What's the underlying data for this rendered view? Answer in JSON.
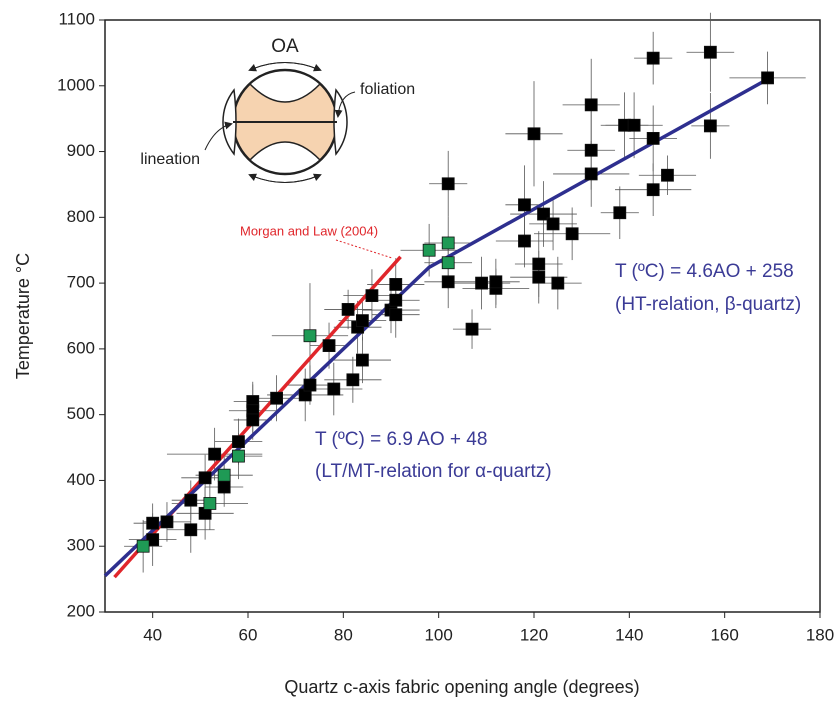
{
  "chart_data": {
    "type": "scatter",
    "xlabel": "Quartz c-axis fabric opening angle (degrees)",
    "ylabel": "Temperature °C",
    "xlim": [
      30,
      180
    ],
    "ylim": [
      200,
      1100
    ],
    "xticks": [
      40,
      60,
      80,
      100,
      120,
      140,
      160,
      180
    ],
    "yticks": [
      200,
      300,
      400,
      500,
      600,
      700,
      800,
      900,
      1000,
      1100
    ],
    "series": [
      {
        "color": "#000000",
        "x": [
          40,
          40,
          43,
          48,
          48,
          51,
          51,
          53,
          55,
          58,
          61,
          61,
          61,
          66,
          72,
          73,
          77,
          78,
          81,
          82,
          83,
          84,
          84,
          86,
          90,
          91,
          91,
          91,
          102,
          102,
          107,
          109,
          112,
          112,
          118,
          118,
          120,
          121,
          121,
          122,
          124,
          125,
          128,
          132,
          132,
          132,
          138,
          139,
          141,
          145,
          145,
          145,
          148,
          157,
          157,
          169
        ],
        "values": [
          335,
          310,
          337,
          325,
          370,
          350,
          404,
          440,
          390,
          459,
          520,
          506,
          492,
          525,
          530,
          545,
          605,
          539,
          660,
          553,
          633,
          583,
          643,
          681,
          659,
          674,
          698,
          652,
          851,
          702,
          630,
          700,
          692,
          702,
          819,
          764,
          927,
          729,
          709,
          805,
          790,
          700,
          775,
          971,
          902,
          866,
          807,
          940,
          940,
          920,
          842,
          1042,
          864,
          1051,
          939,
          1012
        ],
        "xerr": [
          4,
          5,
          5,
          5,
          4,
          6,
          5,
          10,
          4,
          5,
          4,
          5,
          4,
          6,
          8,
          5,
          4,
          6,
          5,
          6,
          5,
          6,
          5,
          6,
          6,
          5,
          6,
          5,
          4,
          5,
          4,
          6,
          7,
          5,
          4,
          6,
          6,
          5,
          6,
          7,
          5,
          5,
          8,
          6,
          5,
          8,
          4,
          5,
          6,
          5,
          8,
          4,
          6,
          5,
          4,
          8
        ],
        "yerr": [
          30,
          40,
          30,
          35,
          30,
          40,
          35,
          40,
          30,
          35,
          30,
          40,
          30,
          35,
          40,
          30,
          35,
          40,
          30,
          35,
          40,
          35,
          30,
          40,
          35,
          30,
          40,
          35,
          50,
          40,
          30,
          40,
          30,
          35,
          60,
          40,
          80,
          50,
          40,
          50,
          40,
          40,
          40,
          70,
          60,
          50,
          40,
          50,
          50,
          50,
          40,
          40,
          30,
          60,
          50,
          40
        ]
      },
      {
        "color": "#1f9a55",
        "x": [
          38,
          52,
          55,
          58,
          73,
          98,
          102,
          102
        ],
        "values": [
          300,
          365,
          408,
          437,
          620,
          750,
          761,
          731
        ],
        "xerr": [
          4,
          8,
          6,
          5,
          8,
          6,
          5,
          5
        ],
        "yerr": [
          40,
          40,
          30,
          35,
          80,
          40,
          40,
          40
        ]
      }
    ],
    "lines": [
      {
        "color": "#e0262b",
        "x": [
          32,
          92
        ],
        "values": [
          253,
          740
        ]
      },
      {
        "color": "#2e2f8f",
        "x": [
          30,
          98,
          169
        ],
        "values": [
          255,
          724,
          1010
        ]
      }
    ],
    "annotations": [
      "Morgan and Law (2004)",
      "T (ºC) = 6.9 AO + 48",
      "(LT/MT-relation for α-quartz)",
      "T (ºC) = 4.6AO + 258",
      "(HT-relation, β-quartz)"
    ],
    "inset": {
      "top": "OA",
      "right": "foliation",
      "left": "lineation"
    }
  }
}
